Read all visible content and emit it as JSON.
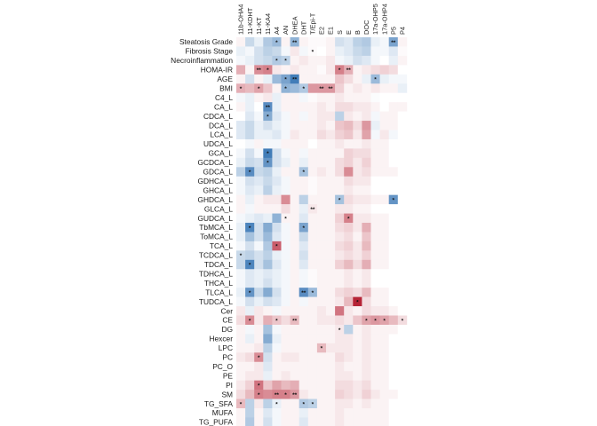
{
  "chart_data": {
    "type": "heatmap",
    "title": "",
    "xlabel": "",
    "ylabel": "",
    "color_scale": {
      "low": "#2166ac",
      "mid": "#ffffff",
      "high": "#b2182b",
      "range": [
        -1,
        1
      ]
    },
    "columns": [
      "11b-OHA4",
      "11-KDHT",
      "11-KT",
      "11-KA4",
      "A4",
      "AN",
      "DHEA",
      "DHT",
      "T/Epi-T",
      "E2",
      "E1",
      "S",
      "E",
      "B",
      "DOC",
      "17a-OHP5",
      "17a-OHP4",
      "P5",
      "P4"
    ],
    "rows": [
      "Steatosis Grade",
      "Fibrosis Stage",
      "Necroinflammation",
      "HOMA-IR",
      "AGE",
      "BMI",
      "C4_L",
      "CA_L",
      "CDCA_L",
      "DCA_L",
      "LCA_L",
      "UDCA_L",
      "GCA_L",
      "GCDCA_L",
      "GDCA_L",
      "GDHCA_L",
      "GHCA_L",
      "GHDCA_L",
      "GLCA_L",
      "GUDCA_L",
      "TbMCA_L",
      "ToMCA_L",
      "TCA_L",
      "TCDCA_L",
      "TDCA_L",
      "TDHCA_L",
      "THCA_L",
      "TLCA_L",
      "TUDCA_L",
      "Cer",
      "CE",
      "DG",
      "Hexcer",
      "LPC",
      "PC",
      "PC_O",
      "PE",
      "PI",
      "SM",
      "TG_SFA",
      "MUFA",
      "TG_PUFA"
    ],
    "values": [
      [
        0.05,
        -0.25,
        -0.1,
        -0.35,
        -0.45,
        0.05,
        -0.5,
        0.05,
        0.02,
        0.02,
        0.05,
        -0.2,
        -0.15,
        -0.3,
        -0.35,
        -0.1,
        -0.05,
        -0.6,
        0.05
      ],
      [
        -0.1,
        -0.05,
        -0.2,
        -0.3,
        -0.25,
        -0.05,
        0.1,
        -0.05,
        0.02,
        0.0,
        0.05,
        -0.1,
        -0.15,
        -0.25,
        -0.3,
        -0.05,
        -0.05,
        -0.15,
        0.02
      ],
      [
        -0.05,
        -0.1,
        -0.2,
        -0.25,
        -0.35,
        -0.3,
        0.05,
        0.1,
        0.05,
        0.05,
        0.1,
        -0.05,
        -0.1,
        -0.2,
        -0.15,
        -0.05,
        0.0,
        -0.1,
        0.05
      ],
      [
        0.35,
        0.05,
        0.5,
        0.55,
        0.1,
        0.05,
        0.1,
        0.05,
        0.05,
        0.02,
        0.1,
        0.55,
        0.35,
        0.05,
        0.1,
        0.15,
        0.2,
        0.15,
        0.0
      ],
      [
        0.05,
        -0.2,
        0.05,
        -0.1,
        -0.45,
        -0.6,
        -0.85,
        0.05,
        0.05,
        0.05,
        0.05,
        0.25,
        0.15,
        0.05,
        -0.1,
        -0.45,
        -0.1,
        -0.05,
        -0.05
      ],
      [
        0.35,
        0.3,
        0.4,
        0.25,
        0.05,
        -0.5,
        -0.45,
        -0.35,
        0.45,
        0.45,
        0.45,
        0.2,
        0.05,
        0.1,
        0.05,
        0.1,
        0.05,
        0.05,
        -0.1
      ],
      [
        -0.05,
        -0.1,
        0.05,
        0.1,
        -0.1,
        0.05,
        0.05,
        -0.05,
        0.02,
        0.05,
        0.05,
        0.1,
        0.05,
        0.05,
        0.05,
        -0.02,
        0.0,
        0.0,
        0.0
      ],
      [
        0.05,
        -0.1,
        0.0,
        -0.75,
        -0.1,
        0.05,
        0.05,
        0.05,
        0.05,
        0.1,
        0.05,
        0.15,
        0.15,
        0.1,
        0.1,
        0.05,
        0.0,
        0.05,
        0.05
      ],
      [
        0.0,
        -0.15,
        -0.05,
        -0.55,
        -0.15,
        -0.05,
        0.05,
        -0.05,
        0.05,
        0.1,
        0.1,
        -0.3,
        0.1,
        0.05,
        0.1,
        -0.05,
        0.05,
        0.05,
        0.0
      ],
      [
        -0.15,
        -0.25,
        -0.1,
        -0.2,
        -0.1,
        -0.05,
        0.05,
        0.05,
        0.05,
        0.1,
        0.05,
        0.25,
        0.3,
        0.15,
        0.45,
        -0.1,
        0.05,
        0.05,
        0.0
      ],
      [
        -0.15,
        -0.25,
        -0.1,
        -0.1,
        -0.15,
        -0.05,
        0.1,
        0.05,
        0.05,
        0.15,
        0.1,
        0.2,
        0.25,
        0.1,
        0.4,
        -0.05,
        0.1,
        -0.05,
        0.0
      ],
      [
        0.0,
        -0.05,
        0.05,
        -0.05,
        -0.05,
        0.05,
        0.05,
        0.05,
        0.0,
        0.05,
        0.05,
        0.1,
        0.05,
        0.05,
        0.1,
        0.05,
        0.05,
        0.0,
        0.0
      ],
      [
        -0.05,
        -0.2,
        -0.05,
        -0.85,
        -0.2,
        -0.05,
        0.05,
        -0.05,
        0.05,
        0.05,
        0.05,
        0.05,
        0.2,
        0.15,
        0.15,
        0.05,
        0.05,
        0.0,
        0.0
      ],
      [
        -0.1,
        -0.25,
        -0.2,
        -0.7,
        -0.2,
        -0.1,
        0.05,
        -0.1,
        0.05,
        0.05,
        0.05,
        0.15,
        0.2,
        0.1,
        0.2,
        0.05,
        0.05,
        0.0,
        0.0
      ],
      [
        -0.3,
        -0.75,
        -0.25,
        -0.3,
        -0.1,
        0.05,
        0.05,
        -0.4,
        0.05,
        0.1,
        0.05,
        0.15,
        0.5,
        0.1,
        0.15,
        0.05,
        0.05,
        0.05,
        0.0
      ],
      [
        -0.05,
        -0.2,
        -0.15,
        -0.25,
        -0.15,
        -0.05,
        0.05,
        0.05,
        0.02,
        0.05,
        0.05,
        0.05,
        0.15,
        0.1,
        0.1,
        0.0,
        0.0,
        0.0,
        0.0
      ],
      [
        -0.05,
        -0.15,
        -0.1,
        -0.3,
        -0.1,
        -0.05,
        0.05,
        0.05,
        0.02,
        0.05,
        0.05,
        0.05,
        0.1,
        0.05,
        0.05,
        0.0,
        0.0,
        0.0,
        0.0
      ],
      [
        0.05,
        -0.1,
        0.05,
        0.1,
        0.1,
        0.5,
        0.05,
        -0.3,
        0.05,
        0.05,
        0.05,
        -0.4,
        0.15,
        0.1,
        0.1,
        0.05,
        0.05,
        -0.7,
        0.0
      ],
      [
        0.05,
        -0.05,
        0.05,
        0.05,
        0.05,
        0.15,
        0.05,
        -0.1,
        0.1,
        0.05,
        0.05,
        0.1,
        0.1,
        0.05,
        0.05,
        0.0,
        0.0,
        0.0,
        0.0
      ],
      [
        -0.05,
        -0.1,
        -0.15,
        -0.1,
        -0.5,
        0.05,
        0.05,
        -0.15,
        0.05,
        0.05,
        0.05,
        0.2,
        0.55,
        0.1,
        0.1,
        0.05,
        0.05,
        0.0,
        0.0
      ],
      [
        -0.1,
        -0.8,
        -0.2,
        -0.55,
        -0.2,
        -0.05,
        0.05,
        -0.6,
        0.05,
        0.05,
        0.05,
        0.15,
        0.2,
        0.1,
        0.35,
        0.05,
        0.05,
        0.0,
        0.0
      ],
      [
        -0.1,
        -0.4,
        -0.2,
        -0.45,
        -0.15,
        -0.05,
        0.05,
        -0.25,
        0.05,
        0.05,
        0.05,
        0.1,
        0.15,
        0.05,
        0.25,
        0.05,
        0.05,
        0.0,
        0.0
      ],
      [
        -0.05,
        -0.2,
        -0.05,
        -0.35,
        0.7,
        -0.05,
        0.05,
        -0.15,
        0.05,
        0.05,
        0.05,
        0.15,
        0.2,
        0.1,
        0.3,
        0.05,
        0.05,
        0.0,
        0.0
      ],
      [
        -0.25,
        -0.3,
        -0.2,
        -0.3,
        -0.1,
        -0.05,
        0.05,
        -0.2,
        0.05,
        0.05,
        0.05,
        0.1,
        0.15,
        0.1,
        0.2,
        0.05,
        0.05,
        0.0,
        0.0
      ],
      [
        -0.25,
        -0.8,
        -0.2,
        -0.4,
        -0.15,
        -0.05,
        0.05,
        -0.15,
        0.05,
        0.05,
        0.05,
        0.2,
        0.3,
        0.15,
        0.35,
        0.05,
        0.05,
        0.0,
        0.0
      ],
      [
        -0.05,
        -0.15,
        -0.1,
        -0.15,
        -0.1,
        -0.05,
        0.05,
        -0.05,
        0.02,
        0.05,
        0.05,
        0.05,
        0.1,
        0.05,
        0.1,
        0.0,
        0.0,
        0.0,
        0.0
      ],
      [
        -0.05,
        -0.15,
        -0.1,
        -0.2,
        -0.1,
        -0.05,
        0.05,
        -0.05,
        0.02,
        0.05,
        0.05,
        0.05,
        0.1,
        0.05,
        0.1,
        0.0,
        0.0,
        0.0,
        0.0
      ],
      [
        -0.1,
        -0.7,
        -0.25,
        -0.55,
        -0.2,
        -0.05,
        0.05,
        -0.75,
        -0.45,
        0.05,
        0.05,
        0.15,
        0.2,
        0.15,
        0.3,
        0.05,
        0.05,
        0.0,
        0.0
      ],
      [
        -0.05,
        -0.2,
        -0.1,
        -0.2,
        -0.15,
        -0.05,
        0.05,
        -0.05,
        0.05,
        0.05,
        0.05,
        0.1,
        0.3,
        0.95,
        0.15,
        0.05,
        0.05,
        0.0,
        0.0
      ],
      [
        0.1,
        -0.1,
        0.1,
        0.05,
        -0.05,
        0.05,
        0.05,
        0.05,
        0.05,
        0.1,
        0.05,
        0.6,
        0.1,
        0.05,
        0.15,
        0.1,
        0.1,
        0.05,
        0.0
      ],
      [
        0.15,
        0.5,
        0.1,
        0.35,
        0.25,
        0.15,
        0.3,
        0.05,
        0.05,
        0.1,
        0.1,
        0.15,
        0.1,
        0.25,
        0.4,
        0.45,
        0.4,
        0.3,
        0.15
      ],
      [
        0.05,
        -0.05,
        0.05,
        -0.4,
        -0.05,
        0.05,
        0.05,
        0.05,
        0.05,
        0.05,
        0.05,
        0.1,
        -0.3,
        0.05,
        0.1,
        0.05,
        0.05,
        0.05,
        0.0
      ],
      [
        0.05,
        -0.1,
        0.05,
        -0.55,
        -0.1,
        0.05,
        0.05,
        0.05,
        0.05,
        0.05,
        0.05,
        0.1,
        0.1,
        0.05,
        0.1,
        0.05,
        0.05,
        0.0,
        0.0
      ],
      [
        0.05,
        0.05,
        0.1,
        -0.3,
        -0.05,
        0.05,
        0.05,
        0.05,
        0.05,
        0.3,
        0.1,
        0.1,
        0.1,
        0.05,
        0.1,
        0.05,
        0.05,
        0.0,
        0.0
      ],
      [
        0.1,
        0.15,
        0.5,
        -0.2,
        0.05,
        0.1,
        0.1,
        0.05,
        0.05,
        0.05,
        0.05,
        0.15,
        0.1,
        0.05,
        0.1,
        0.05,
        0.05,
        0.0,
        0.0
      ],
      [
        0.05,
        0.05,
        0.1,
        -0.15,
        0.05,
        0.05,
        0.05,
        0.05,
        0.05,
        0.05,
        0.05,
        0.1,
        0.05,
        0.05,
        0.1,
        0.05,
        0.05,
        0.0,
        0.0
      ],
      [
        0.05,
        0.1,
        0.1,
        -0.1,
        0.05,
        0.1,
        0.05,
        0.05,
        0.05,
        0.05,
        0.05,
        0.1,
        0.1,
        0.05,
        0.1,
        0.05,
        0.05,
        0.0,
        0.0
      ],
      [
        0.1,
        0.2,
        0.6,
        0.25,
        0.4,
        0.3,
        0.35,
        0.05,
        0.05,
        0.05,
        0.05,
        0.15,
        0.15,
        0.1,
        0.15,
        0.05,
        0.05,
        0.0,
        0.0
      ],
      [
        0.15,
        0.3,
        0.55,
        0.5,
        0.55,
        0.55,
        0.45,
        0.1,
        0.05,
        0.05,
        0.05,
        0.2,
        0.15,
        0.1,
        0.2,
        0.1,
        0.05,
        0.05,
        0.0
      ],
      [
        0.3,
        -0.3,
        0.1,
        -0.3,
        -0.1,
        0.05,
        0.05,
        -0.35,
        -0.3,
        0.05,
        0.05,
        0.1,
        0.1,
        0.05,
        0.1,
        0.05,
        0.05,
        0.0,
        0.0
      ],
      [
        0.05,
        -0.3,
        0.05,
        -0.15,
        -0.05,
        0.05,
        0.05,
        -0.1,
        0.05,
        0.05,
        0.05,
        0.1,
        0.05,
        0.05,
        0.05,
        0.05,
        0.05,
        0.0,
        0.0
      ],
      [
        0.05,
        -0.35,
        0.05,
        -0.2,
        -0.05,
        0.05,
        0.05,
        -0.15,
        0.05,
        0.05,
        0.05,
        0.1,
        0.05,
        0.05,
        0.05,
        0.05,
        0.05,
        0.0,
        0.0
      ]
    ],
    "significance": [
      {
        "row": 0,
        "col": 4,
        "mark": "*"
      },
      {
        "row": 0,
        "col": 6,
        "mark": "**"
      },
      {
        "row": 0,
        "col": 17,
        "mark": "**"
      },
      {
        "row": 1,
        "col": 8,
        "mark": "*"
      },
      {
        "row": 2,
        "col": 4,
        "mark": "*"
      },
      {
        "row": 2,
        "col": 5,
        "mark": "*"
      },
      {
        "row": 3,
        "col": 2,
        "mark": "**"
      },
      {
        "row": 3,
        "col": 3,
        "mark": "*"
      },
      {
        "row": 3,
        "col": 11,
        "mark": "*"
      },
      {
        "row": 3,
        "col": 12,
        "mark": "**"
      },
      {
        "row": 4,
        "col": 5,
        "mark": "*"
      },
      {
        "row": 4,
        "col": 6,
        "mark": "**"
      },
      {
        "row": 4,
        "col": 15,
        "mark": "*"
      },
      {
        "row": 5,
        "col": 0,
        "mark": "*"
      },
      {
        "row": 5,
        "col": 2,
        "mark": "*"
      },
      {
        "row": 5,
        "col": 5,
        "mark": "*"
      },
      {
        "row": 5,
        "col": 7,
        "mark": "*"
      },
      {
        "row": 5,
        "col": 9,
        "mark": "**"
      },
      {
        "row": 5,
        "col": 10,
        "mark": "**"
      },
      {
        "row": 7,
        "col": 3,
        "mark": "**"
      },
      {
        "row": 8,
        "col": 3,
        "mark": "*"
      },
      {
        "row": 12,
        "col": 3,
        "mark": "*"
      },
      {
        "row": 13,
        "col": 3,
        "mark": "*"
      },
      {
        "row": 14,
        "col": 1,
        "mark": "*"
      },
      {
        "row": 14,
        "col": 7,
        "mark": "*"
      },
      {
        "row": 17,
        "col": 11,
        "mark": "*"
      },
      {
        "row": 17,
        "col": 17,
        "mark": "*"
      },
      {
        "row": 18,
        "col": 8,
        "mark": "**"
      },
      {
        "row": 19,
        "col": 5,
        "mark": "*"
      },
      {
        "row": 19,
        "col": 12,
        "mark": "*"
      },
      {
        "row": 20,
        "col": 1,
        "mark": "*"
      },
      {
        "row": 20,
        "col": 7,
        "mark": "*"
      },
      {
        "row": 22,
        "col": 4,
        "mark": "*"
      },
      {
        "row": 23,
        "col": 0,
        "mark": "*"
      },
      {
        "row": 24,
        "col": 1,
        "mark": "*"
      },
      {
        "row": 27,
        "col": 1,
        "mark": "*"
      },
      {
        "row": 27,
        "col": 7,
        "mark": "**"
      },
      {
        "row": 27,
        "col": 8,
        "mark": "*"
      },
      {
        "row": 28,
        "col": 13,
        "mark": "*"
      },
      {
        "row": 30,
        "col": 1,
        "mark": "*"
      },
      {
        "row": 30,
        "col": 4,
        "mark": "*"
      },
      {
        "row": 30,
        "col": 6,
        "mark": "**"
      },
      {
        "row": 30,
        "col": 14,
        "mark": "*"
      },
      {
        "row": 30,
        "col": 15,
        "mark": "*"
      },
      {
        "row": 30,
        "col": 16,
        "mark": "*"
      },
      {
        "row": 30,
        "col": 18,
        "mark": "*"
      },
      {
        "row": 31,
        "col": 11,
        "mark": "*"
      },
      {
        "row": 33,
        "col": 9,
        "mark": "*"
      },
      {
        "row": 34,
        "col": 2,
        "mark": "*"
      },
      {
        "row": 37,
        "col": 2,
        "mark": "*"
      },
      {
        "row": 38,
        "col": 2,
        "mark": "*"
      },
      {
        "row": 38,
        "col": 4,
        "mark": "**"
      },
      {
        "row": 38,
        "col": 5,
        "mark": "*"
      },
      {
        "row": 38,
        "col": 6,
        "mark": "**"
      },
      {
        "row": 39,
        "col": 0,
        "mark": "*"
      },
      {
        "row": 39,
        "col": 4,
        "mark": "*"
      },
      {
        "row": 39,
        "col": 7,
        "mark": "*"
      },
      {
        "row": 39,
        "col": 8,
        "mark": "*"
      }
    ],
    "legend": "none",
    "grid": false
  }
}
